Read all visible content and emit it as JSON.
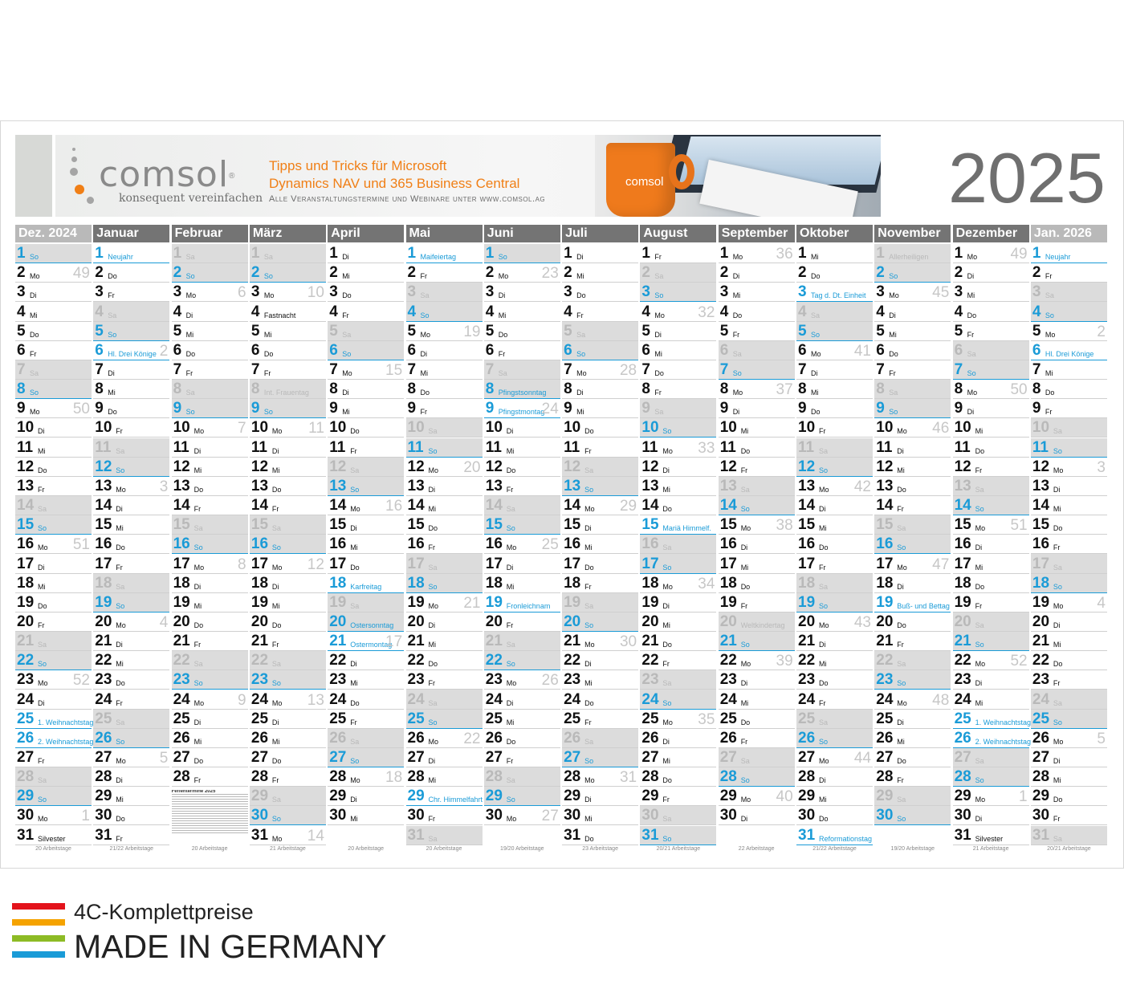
{
  "banner": {
    "logo": "comsol",
    "logo_reg": "®",
    "tagline": "konsequent vereinfachen",
    "promo_line1": "Tipps und Tricks für Microsoft",
    "promo_line2": "Dynamics NAV und 365 Business Central",
    "promo_line3": "Alle Veranstaltungstermine und Webinare unter www.comsol.ag",
    "mug_logo": "comsol"
  },
  "year": "2025",
  "colors": {
    "sunday": "#1a9bd7",
    "saturday": "#b9b9b9",
    "header": "#747474",
    "header_light": "#b9b9b9",
    "orange": "#f07f16"
  },
  "months": [
    {
      "name": "Dez. 2024",
      "start": 0,
      "days": 31,
      "header": "light",
      "footer": "20 Arbeitstage",
      "kw": {
        "2": "49",
        "9": "50",
        "16": "51",
        "23": "52",
        "30": "1"
      },
      "hol": {
        "24": "",
        "25": "1. Weihnachtstag",
        "26": "2. Weihnachtstag",
        "31": "Silvester"
      }
    },
    {
      "name": "Januar",
      "start": 3,
      "days": 31,
      "footer": "21/22 Arbeitstage",
      "kw": {
        "6": "2",
        "13": "3",
        "20": "4",
        "27": "5"
      },
      "hol": {
        "1": "Neujahr",
        "6": "Hl. Drei Könige"
      }
    },
    {
      "name": "Februar",
      "start": 6,
      "days": 28,
      "footer": "20 Arbeitstage",
      "kw": {
        "3": "6",
        "10": "7",
        "17": "8",
        "24": "9"
      },
      "hol": {}
    },
    {
      "name": "März",
      "start": 6,
      "days": 31,
      "footer": "21 Arbeitstage",
      "kw": {
        "3": "10",
        "10": "11",
        "17": "12",
        "24": "13",
        "31": "14"
      },
      "hol": {
        "4": "Fastnacht",
        "8": "Int. Frauentag"
      }
    },
    {
      "name": "April",
      "start": 2,
      "days": 30,
      "footer": "20 Arbeitstage",
      "kw": {
        "7": "15",
        "14": "16",
        "21": "17",
        "28": "18"
      },
      "hol": {
        "18": "Karfreitag",
        "20": "Ostersonntag",
        "21": "Ostermontag"
      }
    },
    {
      "name": "Mai",
      "start": 4,
      "days": 31,
      "footer": "20 Arbeitstage",
      "kw": {
        "5": "19",
        "12": "20",
        "19": "21",
        "26": "22"
      },
      "hol": {
        "1": "Maifeiertag",
        "29": "Chr. Himmelfahrt"
      }
    },
    {
      "name": "Juni",
      "start": 0,
      "days": 30,
      "footer": "19/20 Arbeitstage",
      "kw": {
        "2": "23",
        "9": "24",
        "16": "25",
        "23": "26",
        "30": "27"
      },
      "hol": {
        "8": "Pfingstsonntag",
        "9": "Pfingstmontag",
        "19": "Fronleichnam"
      }
    },
    {
      "name": "Juli",
      "start": 2,
      "days": 31,
      "footer": "23 Arbeitstage",
      "kw": {
        "7": "28",
        "14": "29",
        "21": "30",
        "28": "31"
      },
      "hol": {}
    },
    {
      "name": "August",
      "start": 5,
      "days": 31,
      "footer": "20/21 Arbeitstage",
      "kw": {
        "4": "32",
        "11": "33",
        "18": "34",
        "25": "35"
      },
      "hol": {
        "15": "Mariä Himmelf."
      }
    },
    {
      "name": "September",
      "start": 1,
      "days": 30,
      "footer": "22 Arbeitstage",
      "kw": {
        "1": "36",
        "8": "37",
        "15": "38",
        "22": "39",
        "29": "40"
      },
      "hol": {
        "20": "Weltkindertag"
      }
    },
    {
      "name": "Oktober",
      "start": 3,
      "days": 31,
      "footer": "21/22 Arbeitstage",
      "kw": {
        "6": "41",
        "13": "42",
        "20": "43",
        "27": "44"
      },
      "hol": {
        "3": "Tag d. Dt. Einheit",
        "31": "Reformationstag"
      }
    },
    {
      "name": "November",
      "start": 6,
      "days": 30,
      "footer": "19/20 Arbeitstage",
      "kw": {
        "3": "45",
        "10": "46",
        "17": "47",
        "24": "48"
      },
      "hol": {
        "1": "Allerheiligen",
        "19": "Buß- und Bettag"
      }
    },
    {
      "name": "Dezember",
      "start": 1,
      "days": 31,
      "footer": "21 Arbeitstage",
      "kw": {
        "1": "49",
        "8": "50",
        "15": "51",
        "22": "52",
        "29": "1"
      },
      "hol": {
        "25": "1. Weihnachtstag",
        "26": "2. Weihnachtstag",
        "31": "Silvester"
      }
    },
    {
      "name": "Jan. 2026",
      "start": 4,
      "days": 31,
      "header": "light",
      "footer": "20/21 Arbeitstage",
      "kw": {
        "5": "2",
        "12": "3",
        "19": "4",
        "26": "5"
      },
      "hol": {
        "1": "Neujahr",
        "6": "Hl. Drei Könige"
      }
    }
  ],
  "weekdays": [
    "So",
    "Mo",
    "Di",
    "Mi",
    "Do",
    "Fr",
    "Sa"
  ],
  "ferien_title": "Ferientermine 2025",
  "taglines": {
    "line1": "4C-Komplettpreise",
    "line2": "MADE IN GERMANY"
  }
}
